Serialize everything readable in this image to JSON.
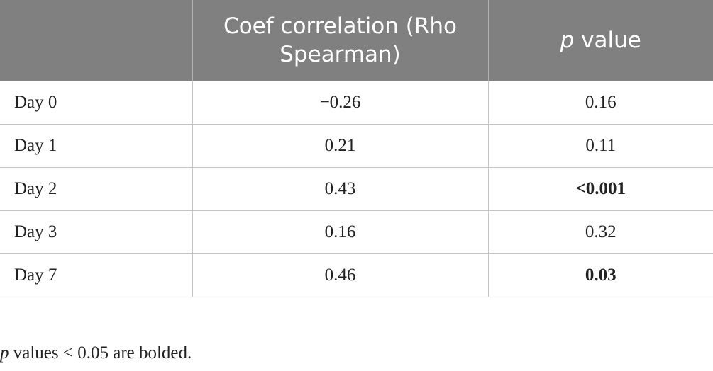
{
  "table": {
    "headers": [
      {
        "label": ""
      },
      {
        "label": "Coef correlation (Rho Spearman)"
      },
      {
        "label_italic": "p",
        "label": " value"
      }
    ],
    "rows": [
      {
        "label": "Day 0",
        "coef": "−0.26",
        "p_value": "0.16",
        "p_bold": false
      },
      {
        "label": "Day 1",
        "coef": "0.21",
        "p_value": "0.11",
        "p_bold": false
      },
      {
        "label": "Day 2",
        "coef": "0.43",
        "p_value": "<0.001",
        "p_bold": true
      },
      {
        "label": "Day 3",
        "coef": "0.16",
        "p_value": "0.32",
        "p_bold": false
      },
      {
        "label": "Day 7",
        "coef": "0.46",
        "p_value": "0.03",
        "p_bold": true
      }
    ]
  },
  "footnote": {
    "italic": "p",
    "text": " values < 0.05 are bolded."
  }
}
